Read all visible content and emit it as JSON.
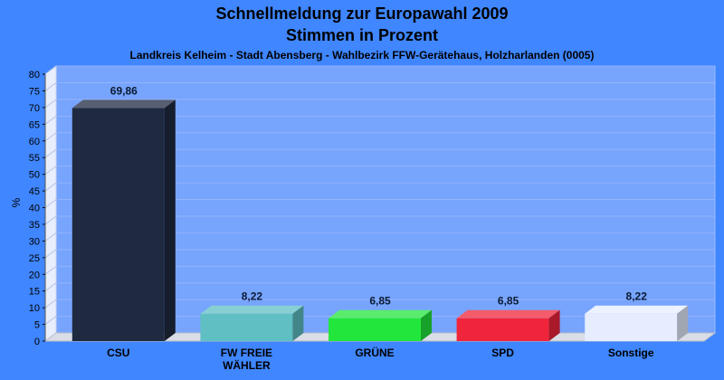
{
  "chart_data": {
    "type": "bar",
    "title": "Schnellmeldung zur Europawahl 2009",
    "subtitle_line": "Stimmen in Prozent",
    "subtitle": "Landkreis Kelheim - Stadt Abensberg - Wahlbezirk FFW-Gerätehaus, Holzharlanden (0005)",
    "ylabel": "%",
    "xlabel": "",
    "ylim": [
      0,
      80
    ],
    "yticks": [
      0,
      5,
      10,
      15,
      20,
      25,
      30,
      35,
      40,
      45,
      50,
      55,
      60,
      65,
      70,
      75,
      80
    ],
    "grid": true,
    "categories": [
      [
        "CSU"
      ],
      [
        "FW FREIE",
        "WÄHLER"
      ],
      [
        "GRÜNE"
      ],
      [
        "SPD"
      ],
      [
        "Sonstige"
      ]
    ],
    "values": [
      69.86,
      8.22,
      6.85,
      6.85,
      8.22
    ],
    "value_labels": [
      "69,86",
      "8,22",
      "6,85",
      "6,85",
      "8,22"
    ],
    "colors": [
      "#1f2a40",
      "#5fbfc3",
      "#22e63c",
      "#f0243a",
      "#e6edff"
    ]
  }
}
